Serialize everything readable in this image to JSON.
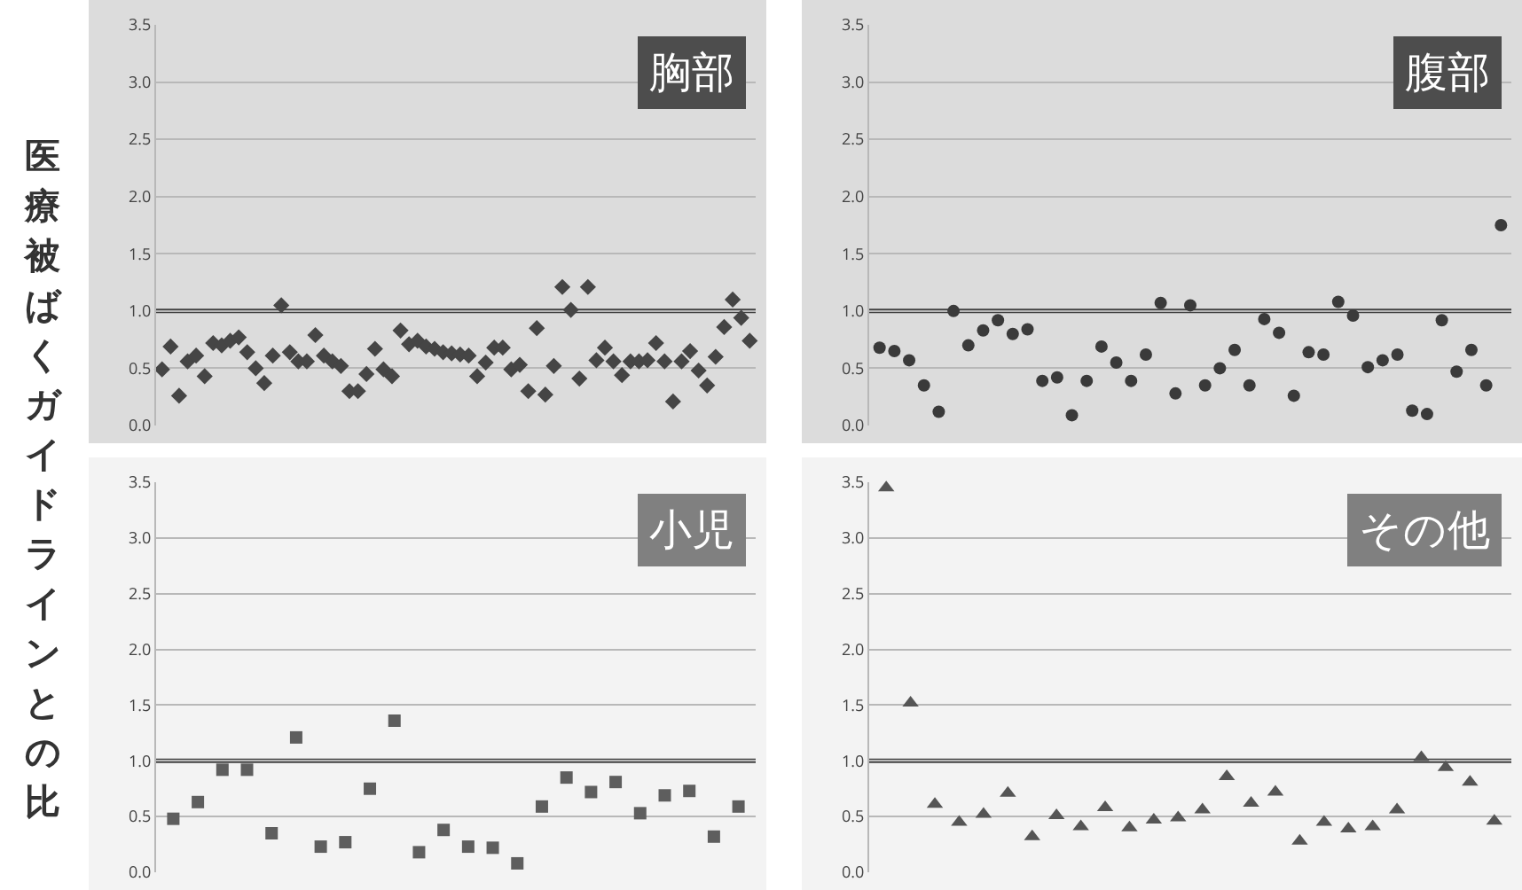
{
  "chart_data": [
    {
      "type": "scatter",
      "title": "胸部",
      "ylabel": "医療被ばくガイドラインとの比",
      "marker": "diamond",
      "grid": "y",
      "tick_labels": "y",
      "categories": [
        null,
        null,
        null,
        null,
        null,
        null,
        null,
        null,
        null,
        null,
        null,
        null,
        null,
        null,
        null,
        null,
        null,
        null,
        null,
        null,
        null,
        null,
        null,
        null,
        null,
        null,
        null,
        null,
        null,
        null,
        null,
        null,
        null,
        null,
        null,
        null,
        null,
        null,
        null,
        null,
        null,
        null,
        null,
        null,
        null,
        null,
        null,
        null,
        null,
        null,
        null,
        null,
        null,
        null,
        null,
        null,
        null,
        null,
        null,
        null,
        null,
        null,
        null,
        null,
        null,
        null,
        null,
        null,
        null,
        null
      ],
      "series": [
        {
          "color": "#454545",
          "values": [
            0.49,
            0.69,
            0.26,
            0.56,
            0.61,
            0.43,
            0.72,
            0.7,
            0.74,
            0.77,
            0.64,
            0.5,
            0.37,
            0.61,
            1.05,
            0.64,
            0.56,
            0.56,
            0.79,
            0.61,
            0.56,
            0.52,
            0.3,
            0.3,
            0.45,
            0.67,
            0.49,
            0.43,
            0.83,
            0.71,
            0.74,
            0.69,
            0.67,
            0.64,
            0.63,
            0.62,
            0.61,
            0.43,
            0.55,
            0.68,
            0.68,
            0.49,
            0.53,
            0.3,
            0.85,
            0.27,
            0.52,
            1.21,
            1.01,
            0.41,
            1.21,
            0.57,
            0.68,
            0.56,
            0.44,
            0.56,
            0.56,
            0.57,
            0.72,
            0.56,
            0.21,
            0.56,
            0.65,
            0.48,
            0.35,
            0.6,
            0.86,
            1.1,
            0.94,
            0.74
          ]
        }
      ],
      "ylim": [
        0,
        3.5
      ],
      "yticks": [
        {
          "value": 0,
          "label": "0.0"
        },
        0.5,
        {
          "value": 1,
          "label": "1.0"
        },
        1.5,
        {
          "value": 2,
          "label": "2.0"
        },
        2.5,
        {
          "value": 3,
          "label": "3.0"
        },
        3.5
      ],
      "ref_lines": [
        {
          "axis": "y",
          "value": 1,
          "color": "#404040"
        }
      ]
    },
    {
      "type": "scatter",
      "title": "腹部",
      "marker": "circle",
      "grid": "y",
      "tick_labels": "y",
      "categories": [
        null,
        null,
        null,
        null,
        null,
        null,
        null,
        null,
        null,
        null,
        null,
        null,
        null,
        null,
        null,
        null,
        null,
        null,
        null,
        null,
        null,
        null,
        null,
        null,
        null,
        null,
        null,
        null,
        null,
        null,
        null,
        null,
        null,
        null,
        null,
        null,
        null,
        null,
        null,
        null,
        null,
        null,
        null
      ],
      "series": [
        {
          "color": "#3a3a3a",
          "values": [
            0.68,
            0.65,
            0.57,
            0.35,
            0.12,
            1.0,
            0.7,
            0.83,
            0.92,
            0.8,
            0.84,
            0.39,
            0.42,
            0.09,
            0.39,
            0.69,
            0.55,
            0.39,
            0.62,
            1.07,
            0.28,
            1.05,
            0.35,
            0.5,
            0.66,
            0.35,
            0.93,
            0.81,
            0.26,
            0.64,
            0.62,
            1.08,
            0.96,
            0.51,
            0.57,
            0.62,
            0.13,
            0.1,
            0.92,
            0.47,
            0.66,
            0.35,
            1.75
          ]
        }
      ],
      "ylim": [
        0,
        3.5
      ],
      "yticks": [
        {
          "value": 0,
          "label": "0.0"
        },
        0.5,
        {
          "value": 1,
          "label": "1.0"
        },
        1.5,
        {
          "value": 2,
          "label": "2.0"
        },
        2.5,
        {
          "value": 3,
          "label": "3.0"
        },
        3.5
      ],
      "ref_lines": [
        {
          "axis": "y",
          "value": 1,
          "color": "#404040"
        }
      ]
    },
    {
      "type": "scatter",
      "title": "小児",
      "marker": "square",
      "grid": "y",
      "tick_labels": "y",
      "categories": [
        null,
        null,
        null,
        null,
        null,
        null,
        null,
        null,
        null,
        null,
        null,
        null,
        null,
        null,
        null,
        null,
        null,
        null,
        null,
        null,
        null,
        null,
        null,
        null
      ],
      "series": [
        {
          "color": "#5e5e5e",
          "values": [
            0.48,
            0.63,
            0.92,
            0.92,
            0.35,
            1.21,
            0.23,
            0.27,
            0.75,
            1.36,
            0.18,
            0.38,
            0.23,
            0.22,
            0.08,
            0.59,
            0.85,
            0.72,
            0.81,
            0.53,
            0.69,
            0.73,
            0.32,
            0.59
          ]
        }
      ],
      "ylim": [
        0,
        3.5
      ],
      "yticks": [
        {
          "value": 0,
          "label": "0.0"
        },
        0.5,
        {
          "value": 1,
          "label": "1.0"
        },
        1.5,
        {
          "value": 2,
          "label": "2.0"
        },
        2.5,
        {
          "value": 3,
          "label": "3.0"
        },
        3.5
      ],
      "ref_lines": [
        {
          "axis": "y",
          "value": 1,
          "color": "#404040"
        }
      ]
    },
    {
      "type": "scatter",
      "title": "その他",
      "marker": "triangle",
      "grid": "y",
      "tick_labels": "y",
      "categories": [
        null,
        null,
        null,
        null,
        null,
        null,
        null,
        null,
        null,
        null,
        null,
        null,
        null,
        null,
        null,
        null,
        null,
        null,
        null,
        null,
        null,
        null,
        null,
        null,
        null,
        null
      ],
      "series": [
        {
          "color": "#555555",
          "values": [
            3.45,
            1.52,
            0.61,
            0.45,
            0.52,
            0.71,
            0.32,
            0.51,
            0.41,
            0.58,
            0.4,
            0.47,
            0.49,
            0.56,
            0.86,
            0.62,
            0.72,
            0.28,
            0.45,
            0.39,
            0.41,
            0.56,
            1.03,
            0.94,
            0.81,
            0.46
          ]
        }
      ],
      "ylim": [
        0,
        3.5
      ],
      "yticks": [
        {
          "value": 0,
          "label": "0.0"
        },
        0.5,
        {
          "value": 1,
          "label": "1.0"
        },
        1.5,
        {
          "value": 2,
          "label": "2.0"
        },
        2.5,
        {
          "value": 3,
          "label": "3.0"
        },
        3.5
      ],
      "ref_lines": [
        {
          "axis": "y",
          "value": 1,
          "color": "#404040"
        }
      ]
    }
  ]
}
